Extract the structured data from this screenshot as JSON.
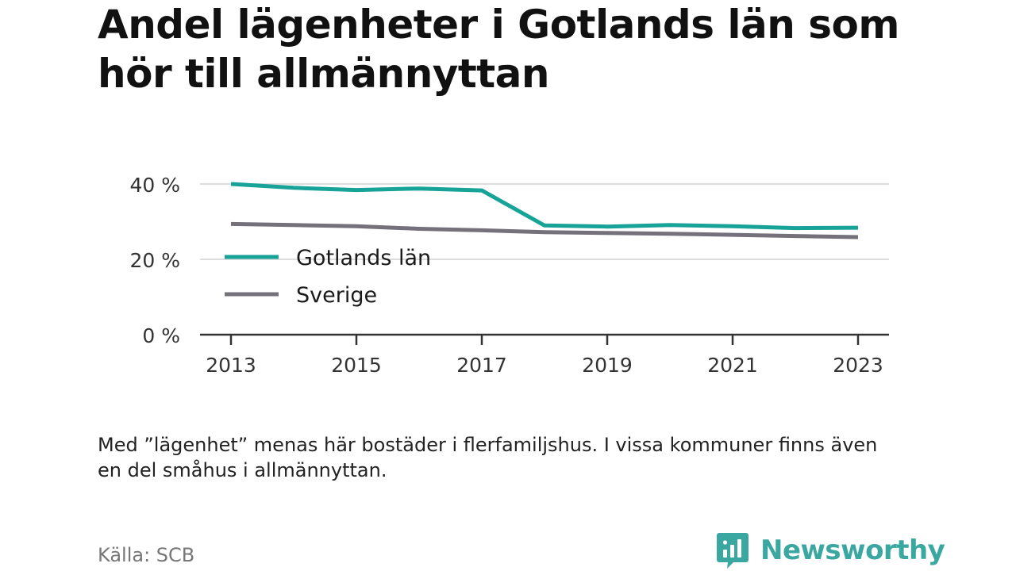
{
  "header": {
    "title": "Andel lägenheter i Gotlands län som hör till allmännyttan"
  },
  "footer": {
    "note": "Med ”lägenhet” menas här bostäder i flerfamiljshus. I vissa kommuner finns även en del småhus i allmännyttan.",
    "source": "Källa: SCB",
    "brand": "Newsworthy",
    "brand_icon": "bar-chart-speech-bubble-icon"
  },
  "colors": {
    "gotland": "#17a398",
    "sverige": "#74717a",
    "grid": "#dddddd",
    "axis": "#333333",
    "brand": "#3aa7a0"
  },
  "chart_data": {
    "type": "line",
    "title": "Andel lägenheter i Gotlands län som hör till allmännyttan",
    "xlabel": "",
    "ylabel": "",
    "x": [
      2013,
      2014,
      2015,
      2016,
      2017,
      2018,
      2019,
      2020,
      2021,
      2022,
      2023
    ],
    "xticks": [
      "2013",
      "2015",
      "2017",
      "2019",
      "2021",
      "2023"
    ],
    "yticks": [
      "0 %",
      "20 %",
      "40 %"
    ],
    "ylim": [
      0,
      40
    ],
    "grid": true,
    "legend_position": "left-inside",
    "series": [
      {
        "name": "Gotlands län",
        "color": "#17a398",
        "values": [
          40.0,
          39.0,
          38.4,
          38.8,
          38.3,
          29.0,
          28.7,
          29.1,
          28.8,
          28.3,
          28.4
        ]
      },
      {
        "name": "Sverige",
        "color": "#74717a",
        "values": [
          29.4,
          29.1,
          28.8,
          28.1,
          27.7,
          27.2,
          27.0,
          26.8,
          26.5,
          26.2,
          25.9
        ]
      }
    ]
  }
}
